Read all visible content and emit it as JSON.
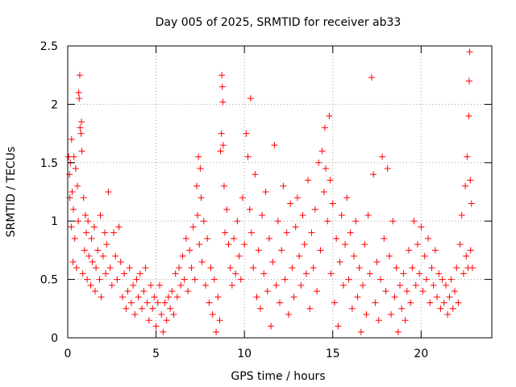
{
  "chart_data": {
    "type": "scatter",
    "title": "Day 005 of 2025, SRMTID for receiver ab33",
    "xlabel": "GPS time / hours",
    "ylabel": "SRMTID / TECUs",
    "xlim": [
      0,
      24
    ],
    "ylim": [
      0,
      2.5
    ],
    "xticks": [
      0,
      5,
      10,
      15,
      20
    ],
    "xtick_labels": [
      "0",
      "5",
      "10",
      "15",
      "20"
    ],
    "yticks": [
      0,
      0.5,
      1,
      1.5,
      2,
      2.5
    ],
    "ytick_labels": [
      "0",
      "0.5",
      "1",
      "1.5",
      "2",
      "2.5"
    ],
    "grid": true,
    "marker": "plus",
    "series": [
      {
        "name": "SRMTID",
        "color": "#ff0000",
        "points": [
          [
            0.05,
            1.55
          ],
          [
            0.1,
            1.4
          ],
          [
            0.12,
            1.2
          ],
          [
            0.15,
            1.5
          ],
          [
            0.2,
            0.95
          ],
          [
            0.22,
            1.7
          ],
          [
            0.25,
            1.25
          ],
          [
            0.3,
            0.65
          ],
          [
            0.32,
            1.1
          ],
          [
            0.35,
            1.55
          ],
          [
            0.4,
            0.85
          ],
          [
            0.45,
            1.45
          ],
          [
            0.5,
            0.6
          ],
          [
            0.55,
            1.3
          ],
          [
            0.6,
            1.0
          ],
          [
            0.62,
            2.1
          ],
          [
            0.65,
            2.05
          ],
          [
            0.68,
            2.25
          ],
          [
            0.7,
            1.8
          ],
          [
            0.75,
            1.75
          ],
          [
            0.78,
            1.85
          ],
          [
            0.8,
            1.6
          ],
          [
            0.85,
            0.55
          ],
          [
            0.9,
            1.2
          ],
          [
            0.95,
            0.75
          ],
          [
            1.0,
            1.05
          ],
          [
            1.05,
            0.9
          ],
          [
            1.1,
            0.5
          ],
          [
            1.15,
            1.0
          ],
          [
            1.2,
            0.7
          ],
          [
            1.3,
            0.45
          ],
          [
            1.35,
            0.85
          ],
          [
            1.4,
            0.65
          ],
          [
            1.5,
            0.95
          ],
          [
            1.55,
            0.4
          ],
          [
            1.6,
            0.6
          ],
          [
            1.7,
            0.75
          ],
          [
            1.8,
            0.5
          ],
          [
            1.85,
            1.05
          ],
          [
            1.9,
            0.35
          ],
          [
            2.0,
            0.7
          ],
          [
            2.1,
            0.9
          ],
          [
            2.15,
            0.55
          ],
          [
            2.2,
            0.8
          ],
          [
            2.3,
            1.25
          ],
          [
            2.4,
            0.6
          ],
          [
            2.5,
            0.45
          ],
          [
            2.6,
            0.9
          ],
          [
            2.7,
            0.7
          ],
          [
            2.8,
            0.5
          ],
          [
            2.9,
            0.95
          ],
          [
            3.0,
            0.65
          ],
          [
            3.1,
            0.35
          ],
          [
            3.2,
            0.55
          ],
          [
            3.3,
            0.25
          ],
          [
            3.4,
            0.4
          ],
          [
            3.5,
            0.6
          ],
          [
            3.6,
            0.3
          ],
          [
            3.7,
            0.45
          ],
          [
            3.8,
            0.2
          ],
          [
            3.9,
            0.5
          ],
          [
            4.0,
            0.35
          ],
          [
            4.1,
            0.55
          ],
          [
            4.2,
            0.25
          ],
          [
            4.3,
            0.4
          ],
          [
            4.4,
            0.6
          ],
          [
            4.5,
            0.3
          ],
          [
            4.6,
            0.15
          ],
          [
            4.7,
            0.45
          ],
          [
            4.8,
            0.25
          ],
          [
            4.9,
            0.35
          ],
          [
            5.0,
            0.1
          ],
          [
            5.1,
            0.3
          ],
          [
            5.2,
            0.45
          ],
          [
            5.3,
            0.2
          ],
          [
            5.4,
            0.05
          ],
          [
            5.5,
            0.3
          ],
          [
            5.6,
            0.15
          ],
          [
            5.7,
            0.35
          ],
          [
            5.8,
            0.25
          ],
          [
            5.9,
            0.4
          ],
          [
            6.0,
            0.2
          ],
          [
            6.1,
            0.55
          ],
          [
            6.2,
            0.35
          ],
          [
            6.3,
            0.6
          ],
          [
            6.4,
            0.45
          ],
          [
            6.5,
            0.7
          ],
          [
            6.6,
            0.5
          ],
          [
            6.7,
            0.85
          ],
          [
            6.8,
            0.4
          ],
          [
            6.9,
            0.75
          ],
          [
            7.0,
            0.6
          ],
          [
            7.1,
            0.95
          ],
          [
            7.2,
            0.5
          ],
          [
            7.3,
            1.3
          ],
          [
            7.35,
            1.05
          ],
          [
            7.4,
            1.55
          ],
          [
            7.45,
            0.8
          ],
          [
            7.5,
            1.45
          ],
          [
            7.55,
            1.2
          ],
          [
            7.6,
            0.65
          ],
          [
            7.7,
            1.0
          ],
          [
            7.8,
            0.45
          ],
          [
            7.9,
            0.85
          ],
          [
            8.0,
            0.3
          ],
          [
            8.1,
            0.6
          ],
          [
            8.2,
            0.2
          ],
          [
            8.3,
            0.5
          ],
          [
            8.4,
            0.05
          ],
          [
            8.5,
            0.35
          ],
          [
            8.6,
            0.15
          ],
          [
            8.65,
            1.6
          ],
          [
            8.7,
            1.75
          ],
          [
            8.72,
            2.25
          ],
          [
            8.75,
            2.15
          ],
          [
            8.78,
            2.02
          ],
          [
            8.8,
            1.65
          ],
          [
            8.85,
            1.3
          ],
          [
            8.9,
            0.9
          ],
          [
            9.0,
            1.1
          ],
          [
            9.1,
            0.8
          ],
          [
            9.2,
            0.6
          ],
          [
            9.3,
            0.45
          ],
          [
            9.4,
            0.85
          ],
          [
            9.5,
            0.55
          ],
          [
            9.6,
            1.0
          ],
          [
            9.7,
            0.7
          ],
          [
            9.8,
            0.5
          ],
          [
            9.9,
            1.2
          ],
          [
            10.0,
            0.8
          ],
          [
            10.1,
            1.75
          ],
          [
            10.2,
            1.55
          ],
          [
            10.3,
            1.1
          ],
          [
            10.35,
            2.05
          ],
          [
            10.4,
            0.9
          ],
          [
            10.5,
            0.6
          ],
          [
            10.6,
            1.4
          ],
          [
            10.7,
            0.35
          ],
          [
            10.8,
            0.75
          ],
          [
            10.9,
            0.25
          ],
          [
            11.0,
            1.05
          ],
          [
            11.1,
            0.55
          ],
          [
            11.2,
            1.25
          ],
          [
            11.3,
            0.4
          ],
          [
            11.4,
            0.85
          ],
          [
            11.5,
            0.1
          ],
          [
            11.6,
            0.65
          ],
          [
            11.7,
            1.65
          ],
          [
            11.8,
            0.45
          ],
          [
            11.9,
            1.0
          ],
          [
            12.0,
            0.3
          ],
          [
            12.1,
            0.75
          ],
          [
            12.2,
            1.3
          ],
          [
            12.3,
            0.5
          ],
          [
            12.4,
            0.9
          ],
          [
            12.5,
            0.2
          ],
          [
            12.6,
            1.15
          ],
          [
            12.7,
            0.6
          ],
          [
            12.8,
            0.35
          ],
          [
            12.9,
            0.95
          ],
          [
            13.0,
            1.2
          ],
          [
            13.1,
            0.7
          ],
          [
            13.2,
            0.45
          ],
          [
            13.3,
            1.05
          ],
          [
            13.4,
            0.8
          ],
          [
            13.5,
            0.55
          ],
          [
            13.6,
            1.35
          ],
          [
            13.7,
            0.25
          ],
          [
            13.8,
            0.9
          ],
          [
            13.9,
            0.6
          ],
          [
            14.0,
            1.1
          ],
          [
            14.1,
            0.4
          ],
          [
            14.2,
            1.5
          ],
          [
            14.3,
            0.75
          ],
          [
            14.4,
            1.6
          ],
          [
            14.5,
            1.25
          ],
          [
            14.55,
            1.8
          ],
          [
            14.6,
            1.45
          ],
          [
            14.7,
            1.0
          ],
          [
            14.8,
            1.9
          ],
          [
            14.85,
            1.35
          ],
          [
            14.9,
            0.55
          ],
          [
            15.0,
            1.15
          ],
          [
            15.1,
            0.3
          ],
          [
            15.2,
            0.85
          ],
          [
            15.3,
            0.1
          ],
          [
            15.4,
            0.65
          ],
          [
            15.5,
            1.05
          ],
          [
            15.6,
            0.45
          ],
          [
            15.7,
            0.8
          ],
          [
            15.8,
            1.2
          ],
          [
            15.9,
            0.5
          ],
          [
            16.0,
            0.9
          ],
          [
            16.1,
            0.25
          ],
          [
            16.2,
            0.7
          ],
          [
            16.3,
            1.0
          ],
          [
            16.4,
            0.35
          ],
          [
            16.5,
            0.6
          ],
          [
            16.6,
            0.05
          ],
          [
            16.7,
            0.45
          ],
          [
            16.8,
            0.8
          ],
          [
            16.9,
            0.2
          ],
          [
            17.0,
            1.05
          ],
          [
            17.1,
            0.55
          ],
          [
            17.2,
            2.23
          ],
          [
            17.3,
            1.4
          ],
          [
            17.4,
            0.3
          ],
          [
            17.5,
            0.65
          ],
          [
            17.6,
            0.15
          ],
          [
            17.7,
            0.5
          ],
          [
            17.8,
            1.55
          ],
          [
            17.9,
            0.85
          ],
          [
            18.0,
            0.4
          ],
          [
            18.1,
            1.45
          ],
          [
            18.2,
            0.7
          ],
          [
            18.3,
            0.2
          ],
          [
            18.4,
            1.0
          ],
          [
            18.5,
            0.35
          ],
          [
            18.6,
            0.6
          ],
          [
            18.7,
            0.05
          ],
          [
            18.8,
            0.45
          ],
          [
            18.9,
            0.25
          ],
          [
            19.0,
            0.55
          ],
          [
            19.1,
            0.15
          ],
          [
            19.2,
            0.4
          ],
          [
            19.3,
            0.75
          ],
          [
            19.4,
            0.3
          ],
          [
            19.5,
            0.6
          ],
          [
            19.6,
            1.0
          ],
          [
            19.7,
            0.45
          ],
          [
            19.8,
            0.8
          ],
          [
            19.9,
            0.55
          ],
          [
            20.0,
            0.95
          ],
          [
            20.1,
            0.4
          ],
          [
            20.2,
            0.7
          ],
          [
            20.3,
            0.5
          ],
          [
            20.4,
            0.85
          ],
          [
            20.5,
            0.3
          ],
          [
            20.6,
            0.6
          ],
          [
            20.7,
            0.45
          ],
          [
            20.8,
            0.75
          ],
          [
            20.9,
            0.35
          ],
          [
            21.0,
            0.55
          ],
          [
            21.1,
            0.25
          ],
          [
            21.2,
            0.5
          ],
          [
            21.3,
            0.3
          ],
          [
            21.4,
            0.45
          ],
          [
            21.5,
            0.2
          ],
          [
            21.6,
            0.35
          ],
          [
            21.7,
            0.5
          ],
          [
            21.8,
            0.25
          ],
          [
            21.9,
            0.4
          ],
          [
            22.0,
            0.6
          ],
          [
            22.1,
            0.3
          ],
          [
            22.2,
            0.8
          ],
          [
            22.3,
            1.05
          ],
          [
            22.4,
            0.55
          ],
          [
            22.5,
            1.3
          ],
          [
            22.55,
            0.7
          ],
          [
            22.6,
            1.55
          ],
          [
            22.65,
            0.6
          ],
          [
            22.7,
            1.9
          ],
          [
            22.72,
            2.2
          ],
          [
            22.75,
            2.45
          ],
          [
            22.78,
            1.35
          ],
          [
            22.8,
            0.75
          ],
          [
            22.85,
            1.15
          ],
          [
            22.9,
            0.6
          ]
        ]
      }
    ]
  }
}
